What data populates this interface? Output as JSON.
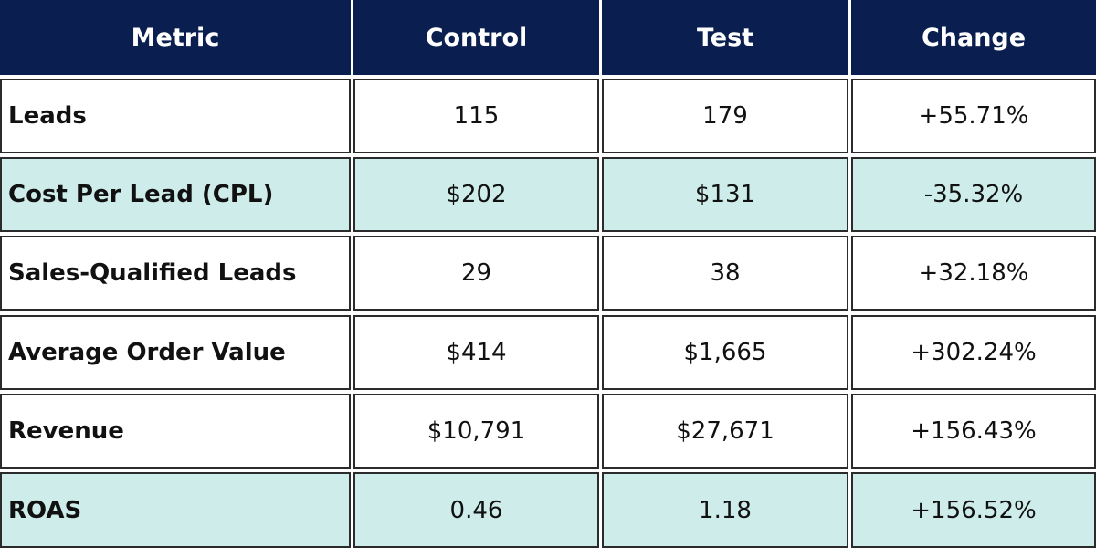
{
  "chart_data": {
    "type": "table",
    "title": "",
    "columns": [
      "Metric",
      "Control",
      "Test",
      "Change"
    ],
    "rows": [
      [
        "Leads",
        "115",
        "179",
        "+55.71%"
      ],
      [
        "Cost Per Lead (CPL)",
        "$202",
        "$131",
        "-35.32%"
      ],
      [
        "Sales-Qualified Leads",
        "29",
        "38",
        "+32.18%"
      ],
      [
        "Average Order Value",
        "$414",
        "$1,665",
        "+302.24%"
      ],
      [
        "Revenue",
        "$10,791",
        "$27,671",
        "+156.43%"
      ],
      [
        "ROAS",
        "0.46",
        "1.18",
        "+156.52%"
      ]
    ],
    "shaded_rows": [
      1,
      5
    ]
  },
  "colors": {
    "header_bg": "#0a1f4f",
    "header_text": "#ffffff",
    "shaded_bg": "#cdecea",
    "plain_bg": "#ffffff",
    "border": "#2b2b2b"
  }
}
